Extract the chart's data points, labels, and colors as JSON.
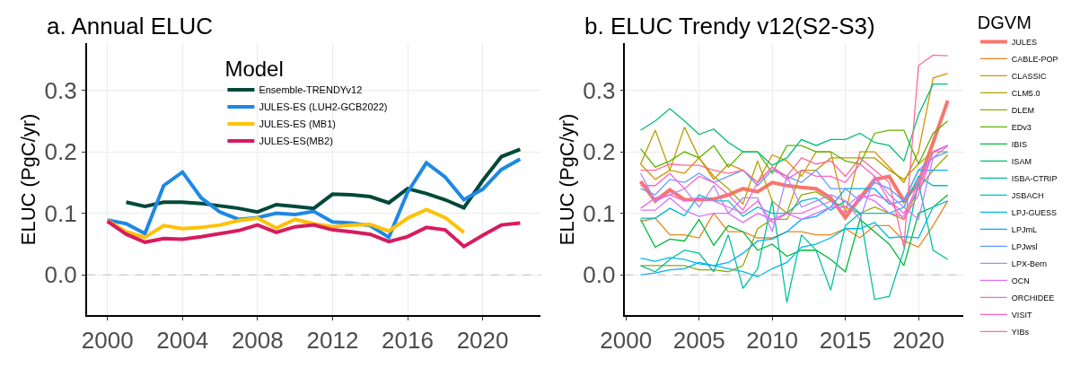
{
  "chart_data": [
    {
      "type": "line",
      "title": "a. Annual ELUC",
      "ylabel": "ELUC (PgC/yr)",
      "legend_title": "Model",
      "legend": "top",
      "grid": true,
      "line_style": "solid",
      "xlim": [
        1998.9,
        2023.1
      ],
      "xticks": [
        2000,
        2004,
        2008,
        2012,
        2016,
        2020
      ],
      "ylim": [
        -0.066,
        0.376
      ],
      "yticks": [
        {
          "value": 0,
          "label": "0.0"
        },
        {
          "value": 0.1,
          "label": "0.1"
        },
        {
          "value": 0.2,
          "label": "0.2"
        },
        {
          "value": 0.3,
          "label": "0.3"
        }
      ],
      "ref_lines": [
        {
          "axis": "y",
          "value": 0,
          "label": null,
          "color": "#bebebe",
          "line_style": "dashed"
        }
      ],
      "series": [
        {
          "name": "Ensemble-TRENDYv12",
          "color": "#00493a",
          "x": [
            2001,
            2002,
            2003,
            2004,
            2005,
            2006,
            2007,
            2008,
            2009,
            2010,
            2011,
            2012,
            2013,
            2014,
            2015,
            2016,
            2017,
            2018,
            2019,
            2020,
            2021,
            2022
          ],
          "values": [
            0.118,
            0.111,
            0.118,
            0.118,
            0.116,
            0.112,
            0.108,
            0.102,
            0.114,
            0.111,
            0.108,
            0.131,
            0.13,
            0.127,
            0.117,
            0.14,
            0.132,
            0.122,
            0.109,
            0.153,
            0.192,
            0.204
          ]
        },
        {
          "name": "JULES-ES (LUH2-GCB2022)",
          "color": "#1e88e5",
          "x": [
            2000,
            2001,
            2002,
            2003,
            2004,
            2005,
            2006,
            2007,
            2008,
            2009,
            2010,
            2011,
            2012,
            2013,
            2014,
            2015,
            2016,
            2017,
            2018,
            2019,
            2020,
            2021,
            2022
          ],
          "values": [
            0.089,
            0.083,
            0.067,
            0.145,
            0.167,
            0.125,
            0.102,
            0.09,
            0.093,
            0.1,
            0.098,
            0.103,
            0.086,
            0.084,
            0.08,
            0.061,
            0.134,
            0.182,
            0.159,
            0.122,
            0.139,
            0.171,
            0.188
          ]
        },
        {
          "name": "JULES-ES (MB1)",
          "color": "#ffc107",
          "x": [
            2000,
            2001,
            2002,
            2003,
            2004,
            2005,
            2006,
            2007,
            2008,
            2009,
            2010,
            2011,
            2012,
            2013,
            2014,
            2015,
            2016,
            2017,
            2018,
            2019
          ],
          "values": [
            0.088,
            0.07,
            0.061,
            0.08,
            0.075,
            0.077,
            0.081,
            0.088,
            0.092,
            0.076,
            0.09,
            0.083,
            0.078,
            0.081,
            0.082,
            0.071,
            0.092,
            0.106,
            0.093,
            0.069
          ]
        },
        {
          "name": "JULES-ES(MB2)",
          "color": "#d81b60",
          "x": [
            2000,
            2001,
            2002,
            2003,
            2004,
            2005,
            2006,
            2007,
            2008,
            2009,
            2010,
            2011,
            2012,
            2013,
            2014,
            2015,
            2016,
            2017,
            2018,
            2019,
            2020,
            2021,
            2022
          ],
          "values": [
            0.087,
            0.066,
            0.053,
            0.059,
            0.058,
            0.062,
            0.067,
            0.072,
            0.081,
            0.069,
            0.078,
            0.081,
            0.073,
            0.07,
            0.066,
            0.054,
            0.062,
            0.077,
            0.073,
            0.046,
            0.064,
            0.081,
            0.084
          ]
        }
      ]
    },
    {
      "type": "line",
      "title": "b. ELUC Trendy v12(S2-S3)",
      "ylabel": "ELUC (PgC/yr)",
      "legend_title": "DGVM",
      "legend": "right",
      "grid": true,
      "line_style": "solid",
      "xlim": [
        1999.95,
        2023.05
      ],
      "xticks": [
        2000,
        2005,
        2010,
        2015,
        2020
      ],
      "x": [
        2001,
        2002,
        2003,
        2004,
        2005,
        2006,
        2007,
        2008,
        2009,
        2010,
        2011,
        2012,
        2013,
        2014,
        2015,
        2016,
        2017,
        2018,
        2019,
        2020,
        2021,
        2022
      ],
      "ylim": [
        -0.066,
        0.376
      ],
      "yticks": [
        {
          "value": 0,
          "label": "0.0"
        },
        {
          "value": 0.1,
          "label": "0.1"
        },
        {
          "value": 0.2,
          "label": "0.2"
        },
        {
          "value": 0.3,
          "label": "0.3"
        }
      ],
      "ref_lines": [
        {
          "axis": "y",
          "value": 0,
          "label": null,
          "color": "#bebebe",
          "line_style": "dashed"
        }
      ],
      "series": [
        {
          "name": "JULES",
          "color": "#f8766d",
          "values": [
            0.152,
            0.12,
            0.138,
            0.122,
            0.122,
            0.123,
            0.13,
            0.14,
            0.135,
            0.15,
            0.145,
            0.142,
            0.14,
            0.125,
            0.093,
            0.125,
            0.155,
            0.16,
            0.12,
            0.15,
            0.215,
            0.283
          ]
        },
        {
          "name": "CABLE-POP",
          "color": "#e8851e",
          "values": [
            0.087,
            0.092,
            0.065,
            0.065,
            0.06,
            0.1,
            0.07,
            0.07,
            0.06,
            0.06,
            0.07,
            0.07,
            0.065,
            0.065,
            0.075,
            0.06,
            0.08,
            0.08,
            0.055,
            0.045,
            0.08,
            0.12
          ]
        },
        {
          "name": "CLASSIC",
          "color": "#d39200",
          "values": [
            0.18,
            0.155,
            0.17,
            0.165,
            0.19,
            0.155,
            0.18,
            0.17,
            0.15,
            0.195,
            0.185,
            0.16,
            0.2,
            0.2,
            0.1,
            0.2,
            0.2,
            0.175,
            0.15,
            0.2,
            0.32,
            0.327
          ]
        },
        {
          "name": "CLM5.0",
          "color": "#b79f00",
          "values": [
            0.18,
            0.235,
            0.17,
            0.24,
            0.19,
            0.16,
            0.14,
            0.115,
            0.185,
            0.12,
            0.1,
            0.17,
            0.17,
            0.19,
            0.19,
            0.19,
            0.19,
            0.17,
            0.155,
            0.18,
            0.2,
            0.2
          ]
        },
        {
          "name": "DLEM",
          "color": "#93aa00",
          "values": [
            0.015,
            0.015,
            0.015,
            0.015,
            0.008,
            0.008,
            0.005,
            0.015,
            0.075,
            0.09,
            0.09,
            0.13,
            0.135,
            0.12,
            0.11,
            0.1,
            0.11,
            0.1,
            0.09,
            0.14,
            0.17,
            0.195
          ]
        },
        {
          "name": "EDv3",
          "color": "#5eb300",
          "values": [
            0.205,
            0.175,
            0.185,
            0.2,
            0.19,
            0.21,
            0.175,
            0.2,
            0.2,
            0.165,
            0.21,
            0.21,
            0.2,
            0.2,
            0.185,
            0.18,
            0.23,
            0.235,
            0.235,
            0.18,
            0.23,
            0.25
          ]
        },
        {
          "name": "IBIS",
          "color": "#00ba38",
          "values": [
            0.09,
            0.045,
            0.058,
            0.055,
            0.09,
            0.048,
            0.08,
            0.07,
            0.04,
            0.05,
            0.03,
            0.04,
            0.04,
            0.025,
            0.005,
            0.09,
            0.07,
            0.05,
            0.015,
            0.1,
            0.11,
            0.13
          ]
        },
        {
          "name": "ISAM",
          "color": "#00bf74",
          "values": [
            0.235,
            0.25,
            0.27,
            0.25,
            0.228,
            0.237,
            0.215,
            0.2,
            0.2,
            0.178,
            0.19,
            0.22,
            0.21,
            0.22,
            0.22,
            0.23,
            0.215,
            0.21,
            0.185,
            0.26,
            0.31,
            0.31
          ]
        },
        {
          "name": "ISBA-CTRIP",
          "color": "#00c19f",
          "values": [
            0.015,
            0.005,
            0.025,
            0.04,
            0.035,
            0.005,
            0.065,
            -0.022,
            0.01,
            0.12,
            -0.045,
            0.065,
            0.04,
            -0.025,
            0.08,
            0.1,
            -0.04,
            -0.035,
            0.04,
            0.15,
            0.04,
            0.025
          ]
        },
        {
          "name": "JSBACH",
          "color": "#00bfc4",
          "values": [
            0.092,
            0.092,
            0.108,
            0.096,
            0.13,
            0.12,
            0.12,
            0.095,
            0.11,
            0.1,
            0.1,
            0.12,
            0.125,
            0.105,
            0.12,
            0.1,
            0.1,
            0.1,
            0.11,
            0.16,
            0.145,
            0.145
          ]
        },
        {
          "name": "LPJ-GUESS",
          "color": "#00b9e3",
          "values": [
            0.027,
            0.022,
            0.028,
            0.025,
            0.018,
            0.015,
            0.01,
            0.005,
            -0.003,
            0.01,
            0.02,
            0.045,
            0.05,
            0.06,
            0.075,
            0.075,
            0.085,
            0.06,
            0.062,
            0.06,
            0.11,
            0.12
          ]
        },
        {
          "name": "LPJmL",
          "color": "#00adfa",
          "values": [
            0.0,
            0.003,
            0.008,
            0.01,
            0.02,
            0.015,
            0.02,
            0.035,
            0.055,
            0.058,
            0.07,
            0.09,
            0.095,
            0.11,
            0.14,
            0.14,
            0.14,
            0.115,
            0.12,
            0.17,
            0.17,
            0.17
          ]
        },
        {
          "name": "LPJwsl",
          "color": "#619cff",
          "values": [
            0.14,
            0.13,
            0.155,
            0.15,
            0.165,
            0.15,
            0.16,
            0.17,
            0.145,
            0.17,
            0.16,
            0.15,
            0.17,
            0.14,
            0.14,
            0.12,
            0.15,
            0.14,
            0.12,
            0.17,
            0.19,
            0.2
          ]
        },
        {
          "name": "LPX-Bern",
          "color": "#ae87ff",
          "values": [
            0.165,
            0.12,
            0.13,
            0.14,
            0.11,
            0.145,
            0.1,
            0.125,
            0.125,
            0.07,
            0.16,
            0.11,
            0.12,
            0.13,
            0.12,
            0.09,
            0.16,
            0.13,
            0.11,
            0.09,
            0.19,
            0.21
          ]
        },
        {
          "name": "OCN",
          "color": "#db72fb",
          "values": [
            0.105,
            0.105,
            0.125,
            0.105,
            0.095,
            0.1,
            0.1,
            0.085,
            0.1,
            0.09,
            0.1,
            0.09,
            0.1,
            0.11,
            0.11,
            0.13,
            0.12,
            0.1,
            0.095,
            0.15,
            0.2,
            0.21
          ]
        },
        {
          "name": "ORCHIDEE",
          "color": "#f564e3",
          "values": [
            0.108,
            0.125,
            0.13,
            0.12,
            0.125,
            0.12,
            0.11,
            0.1,
            0.12,
            0.085,
            0.1,
            0.1,
            0.11,
            0.12,
            0.1,
            0.125,
            0.13,
            0.12,
            0.1,
            0.14,
            0.2,
            0.21
          ]
        },
        {
          "name": "VISIT",
          "color": "#ff61c3",
          "values": [
            0.145,
            0.145,
            0.165,
            0.14,
            0.16,
            0.15,
            0.13,
            0.105,
            0.15,
            0.175,
            0.155,
            0.17,
            0.16,
            0.16,
            0.15,
            0.18,
            0.16,
            0.12,
            0.09,
            0.13,
            0.2,
            0.21
          ]
        },
        {
          "name": "YIBs",
          "color": "#ff699c",
          "values": [
            0.17,
            0.17,
            0.18,
            0.178,
            0.178,
            0.17,
            0.165,
            0.17,
            0.15,
            0.175,
            0.16,
            0.19,
            0.18,
            0.185,
            0.16,
            0.19,
            0.17,
            0.15,
            0.045,
            0.34,
            0.357,
            0.356
          ]
        }
      ]
    }
  ]
}
